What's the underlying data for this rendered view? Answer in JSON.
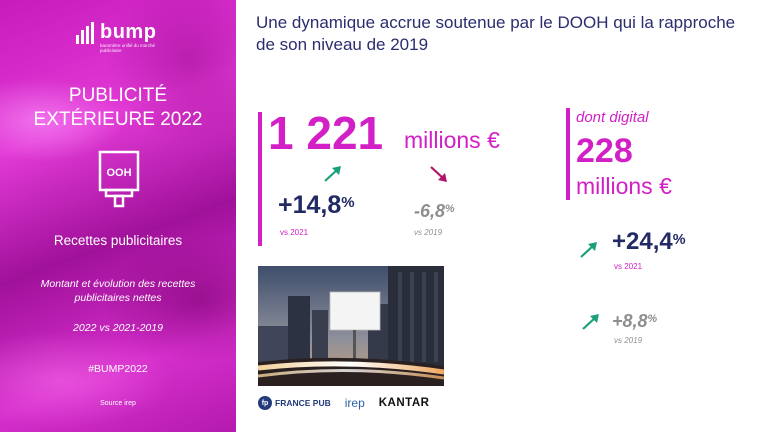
{
  "sidebar": {
    "logo_word": "bump",
    "logo_tagline": "baromètre unifié du marché publicitaire",
    "title_line1": "PUBLICITÉ",
    "title_line2": "EXTÉRIEURE 2022",
    "ooh_label": "OOH",
    "subtitle": "Recettes publicitaires",
    "description": "Montant et évolution des recettes publicitaires nettes",
    "years": "2022 vs 2021-2019",
    "hashtag": "#BUMP2022",
    "source": "Source irep"
  },
  "heading": "Une dynamique accrue soutenue par le DOOH qui la rapproche de son niveau de 2019",
  "total": {
    "value": "1 221",
    "unit": "millions €",
    "vs2021": {
      "pct": "+14,8",
      "sign": "%",
      "label": "vs 2021"
    },
    "vs2019": {
      "pct": "-6,8",
      "sign": "%",
      "label": "vs 2019"
    }
  },
  "digital": {
    "label": "dont digital",
    "value": "228",
    "unit": "millions €",
    "vs2021": {
      "pct": "+24,4",
      "sign": "%",
      "label": "vs 2021"
    },
    "vs2019": {
      "pct": "+8,8",
      "sign": "%",
      "label": "vs 2019"
    }
  },
  "logos": {
    "francepub_mark": "fp",
    "francepub": "FRANCE PUB",
    "irep": "irep",
    "kantar": "KANTAR"
  },
  "colors": {
    "accent": "#d21fc6",
    "navy": "#222a64",
    "up_arrow": "#1aa07a",
    "down_arrow": "#b0136a",
    "grey": "#8e8e8e"
  }
}
